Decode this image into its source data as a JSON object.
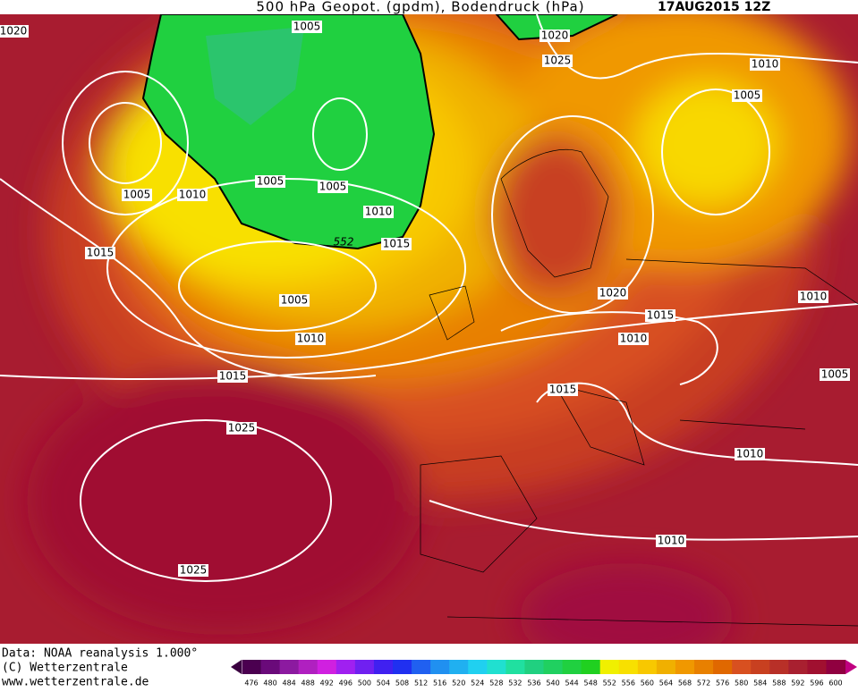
{
  "header": {
    "title": "500 hPa Geopot. (gpdm), Bodendruck (hPa)",
    "date": "17AUG2015 12Z"
  },
  "isobar_labels": [
    1020,
    1005,
    1020,
    1025,
    1010,
    1005,
    1005,
    1010,
    1005,
    1005,
    1010,
    1015,
    1015,
    1005,
    1010,
    1020,
    1015,
    1010,
    1010,
    1015,
    1005,
    1015,
    1025,
    1010,
    1010,
    1025
  ],
  "contour_labels": [
    552
  ],
  "colorbar": {
    "values": [
      476,
      480,
      484,
      488,
      492,
      496,
      500,
      504,
      508,
      512,
      516,
      520,
      524,
      528,
      532,
      536,
      540,
      544,
      548,
      552,
      556,
      560,
      564,
      568,
      572,
      576,
      580,
      584,
      588,
      592,
      596,
      600
    ],
    "colors": [
      "#4b0050",
      "#6a0a7a",
      "#8c1aa0",
      "#b020c0",
      "#d020e0",
      "#a020f0",
      "#7020f0",
      "#4020f0",
      "#2030f0",
      "#2060f0",
      "#2090f0",
      "#20b0f0",
      "#20d0f0",
      "#20e0d0",
      "#20e0a0",
      "#20d080",
      "#20d060",
      "#20d040",
      "#20d020",
      "#f0f000",
      "#f8e000",
      "#f8c800",
      "#f0b000",
      "#f09800",
      "#e88000",
      "#e06800",
      "#d85020",
      "#c84020",
      "#b83028",
      "#a82030",
      "#a01030",
      "#900040"
    ]
  },
  "footer": {
    "source": "Data: NOAA reanalysis 1.000°",
    "copyright": "(C) Wetterzentrale",
    "website": "www.wetterzentrale.de"
  }
}
